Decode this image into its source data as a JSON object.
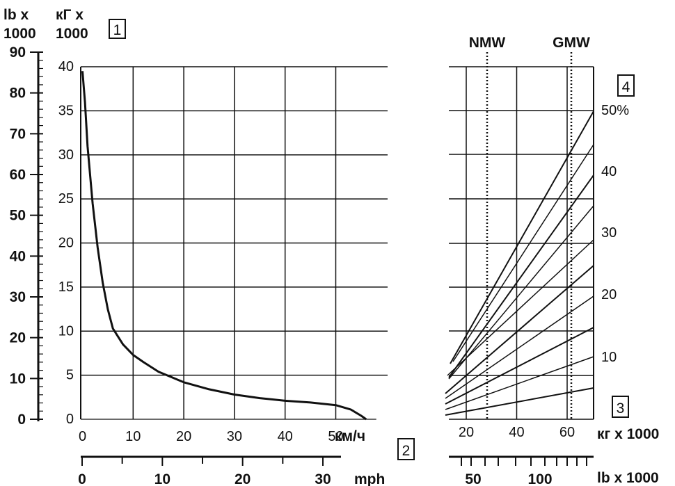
{
  "chart_data": [
    {
      "type": "line",
      "title": "",
      "marker_label": "1",
      "axis_labels": {
        "lb_top": "lb x",
        "lb_bottom": "1000",
        "kg_top": "кГ x",
        "kg_bottom": "1000",
        "speed_kmh": "км/ч",
        "speed_mph": "mph",
        "marker_2": "2"
      },
      "ylim_kg": [
        0,
        40
      ],
      "yticks_kg": [
        0,
        5,
        10,
        15,
        20,
        25,
        30,
        35,
        40
      ],
      "ylim_lb": [
        0,
        90
      ],
      "yticks_lb": [
        0,
        10,
        20,
        30,
        40,
        50,
        60,
        70,
        80,
        90
      ],
      "xlim_kmh": [
        0,
        56
      ],
      "xticks_kmh": [
        0,
        10,
        20,
        30,
        40,
        50
      ],
      "xticks_mph": [
        0,
        10,
        20,
        30
      ],
      "grid": true,
      "series": [
        {
          "points": [
            [
              0,
              39.5
            ],
            [
              0.5,
              36
            ],
            [
              1,
              31
            ],
            [
              2,
              24.5
            ],
            [
              3,
              19.5
            ],
            [
              4,
              15.5
            ],
            [
              5,
              12.5
            ],
            [
              6,
              10.3
            ],
            [
              8,
              8.5
            ],
            [
              10,
              7.3
            ],
            [
              12,
              6.5
            ],
            [
              15,
              5.4
            ],
            [
              20,
              4.2
            ],
            [
              25,
              3.4
            ],
            [
              30,
              2.8
            ],
            [
              35,
              2.4
            ],
            [
              40,
              2.1
            ],
            [
              45,
              1.9
            ],
            [
              50,
              1.6
            ],
            [
              53,
              1.1
            ],
            [
              55,
              0.4
            ],
            [
              56,
              0
            ]
          ]
        }
      ]
    },
    {
      "type": "line",
      "title": "",
      "marker_label": "4",
      "marker_bottom": "3",
      "axis_labels": {
        "nmw": "NMW",
        "gmw": "GMW",
        "weight_kg": "кг x 1000",
        "weight_lb": "lb x 1000"
      },
      "xticks_kg": [
        20,
        40,
        60
      ],
      "xticks_lb": [
        50,
        100
      ],
      "grade_labels": [
        "50%",
        "40",
        "30",
        "20",
        "10"
      ],
      "grid": true,
      "series_description_from_picture": null,
      "lines": [
        [
          [
            13,
            6.5
          ],
          [
            71,
            35
          ]
        ],
        [
          [
            13,
            6.2
          ],
          [
            71,
            31
          ]
        ],
        [
          [
            13,
            5.3
          ],
          [
            71,
            28
          ]
        ],
        [
          [
            13,
            4.8
          ],
          [
            71,
            25
          ]
        ],
        [
          [
            13,
            3.2
          ],
          [
            71,
            18
          ]
        ],
        [
          [
            13,
            2.8
          ],
          [
            71,
            15
          ]
        ],
        [
          [
            13,
            2.2
          ],
          [
            71,
            12
          ]
        ],
        [
          [
            13,
            1.7
          ],
          [
            71,
            9
          ]
        ],
        [
          [
            13,
            1.2
          ],
          [
            71,
            5.5
          ]
        ],
        [
          [
            13,
            0.8
          ],
          [
            71,
            3
          ]
        ]
      ]
    }
  ]
}
